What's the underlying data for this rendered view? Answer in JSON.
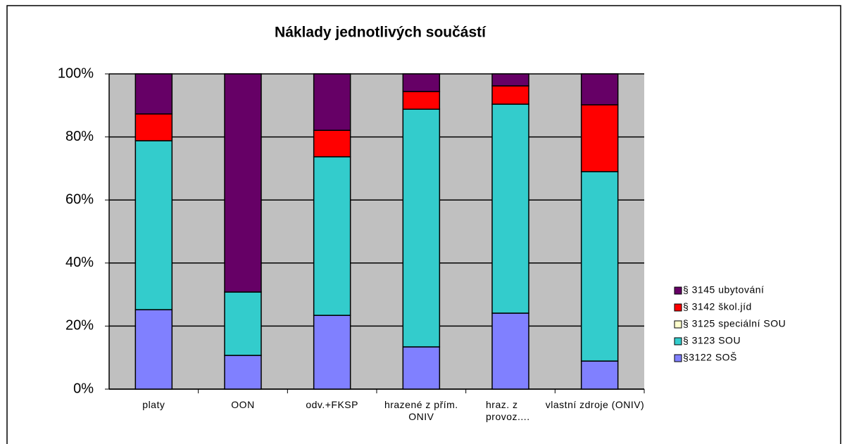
{
  "chart_data": {
    "type": "stacked_bar_100",
    "title": "Náklady jednotlivých součástí",
    "categories": [
      "platy",
      "OON",
      "odv.+FKSP",
      "hrazené z přím. ONIV",
      "hraz. z provoz....",
      "vlastní zdroje (ONIV)"
    ],
    "series": [
      {
        "name": "§3122 SOŠ",
        "color": "#8080ff",
        "values": [
          25.2,
          10.7,
          23.4,
          13.4,
          24.1,
          8.9
        ]
      },
      {
        "name": "§ 3123 SOU",
        "color": "#33cccc",
        "values": [
          53.6,
          20.1,
          50.3,
          75.4,
          66.3,
          60.1
        ]
      },
      {
        "name": "§ 3125 speciální SOU",
        "color": "#ffffcc",
        "values": [
          0,
          0,
          0,
          0,
          0,
          0
        ]
      },
      {
        "name": "§ 3142 škol.jíd",
        "color": "#ff0000",
        "values": [
          8.5,
          0,
          8.4,
          5.6,
          5.8,
          21.2
        ]
      },
      {
        "name": "§ 3145 ubytování",
        "color": "#660066",
        "values": [
          12.7,
          69.2,
          17.9,
          5.6,
          3.8,
          9.8
        ]
      }
    ],
    "ylim": [
      0,
      100
    ],
    "yticks": [
      {
        "value": 0,
        "label": "0%"
      },
      {
        "value": 20,
        "label": "20%"
      },
      {
        "value": 40,
        "label": "40%"
      },
      {
        "value": 60,
        "label": "60%"
      },
      {
        "value": 80,
        "label": "80%"
      },
      {
        "value": 100,
        "label": "100%"
      }
    ],
    "grid": true,
    "legend": "right"
  }
}
